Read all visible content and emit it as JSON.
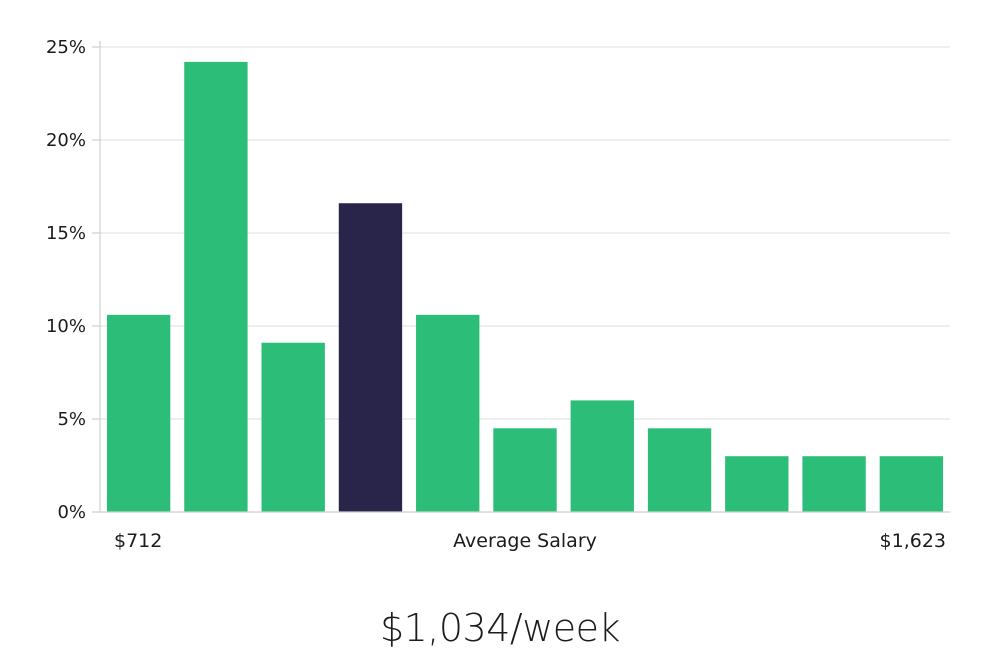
{
  "colors": {
    "bar": "#2cbe78",
    "highlight_bar": "#29254a",
    "grid": "#e3e3e3",
    "axis": "#cfcfcf",
    "text": "#1c1c1c"
  },
  "chart_data": {
    "type": "bar",
    "title": "",
    "xlabel": "Average Salary",
    "ylabel": "",
    "x_min_label": "$712",
    "x_max_label": "$1,623",
    "ylim": [
      0,
      25
    ],
    "yticks": [
      0,
      5,
      10,
      15,
      20,
      25
    ],
    "ytick_labels": [
      "0%",
      "5%",
      "10%",
      "15%",
      "20%",
      "25%"
    ],
    "values": [
      10.6,
      24.2,
      9.1,
      16.6,
      10.6,
      4.5,
      6.0,
      4.5,
      3.0,
      3.0,
      3.0
    ],
    "highlight_index": 3,
    "grid": true
  },
  "summary": {
    "average_salary": "$1,034/week"
  }
}
